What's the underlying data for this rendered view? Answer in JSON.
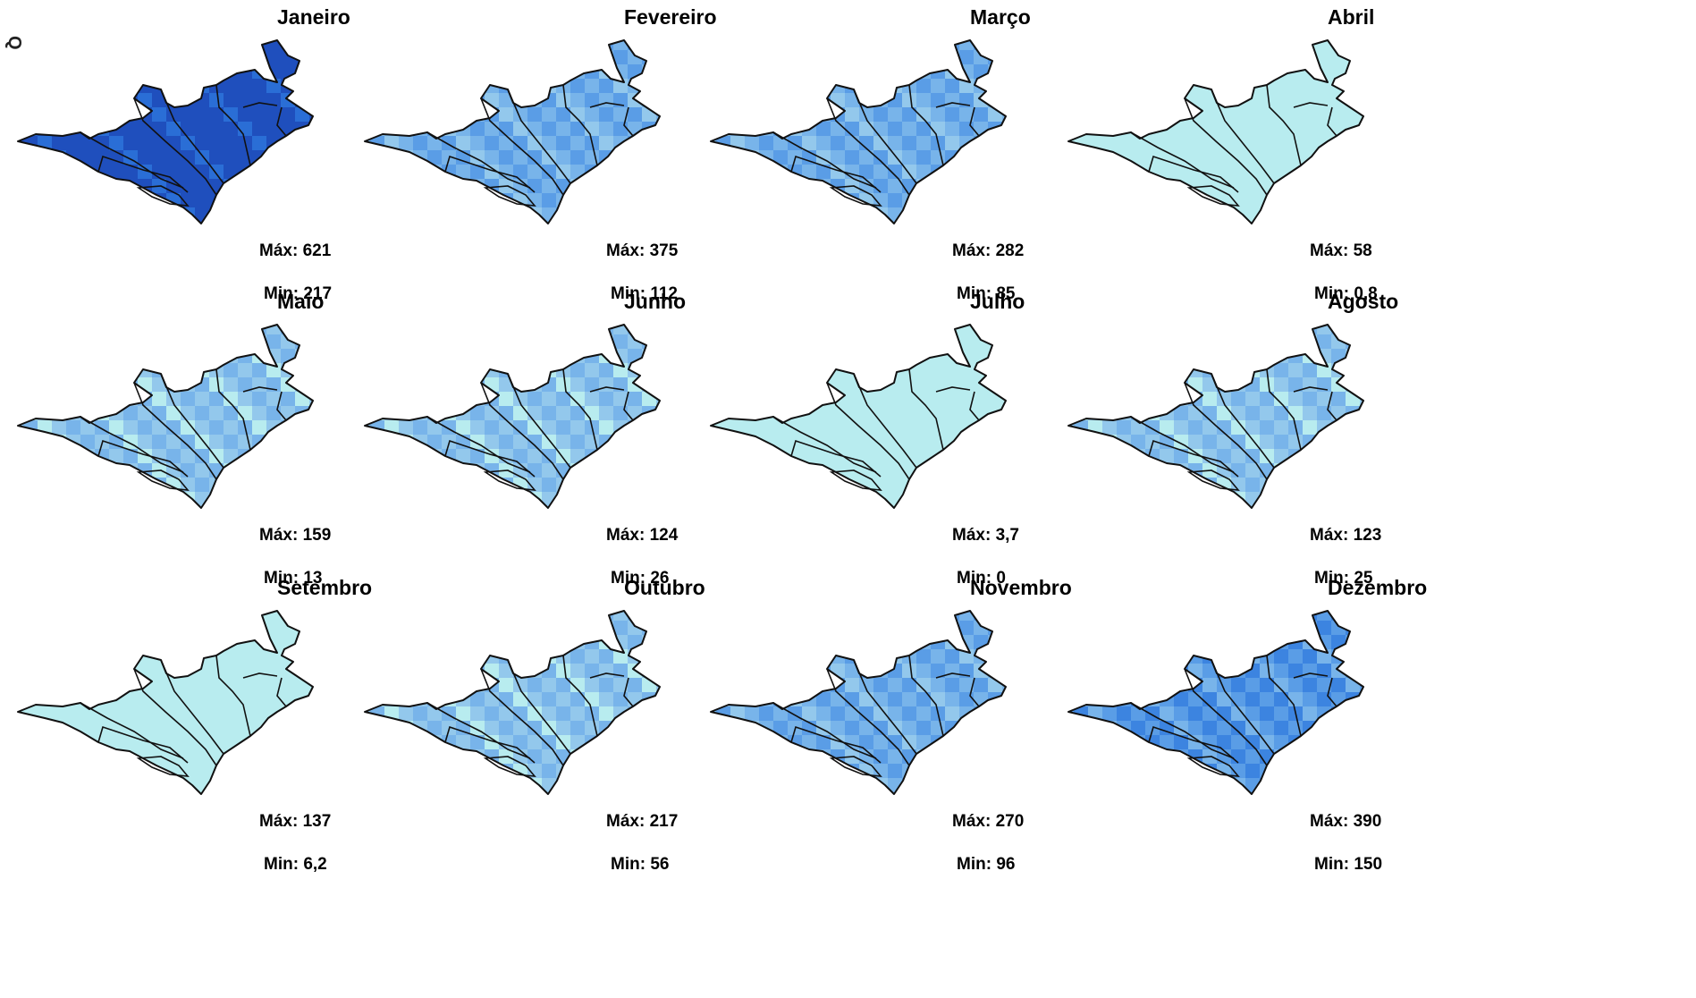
{
  "side_label": "Q",
  "colors": {
    "outline": "#111111",
    "outer_fill_light": "#b8ecef",
    "scale": [
      "#b8ecef",
      "#93c8ec",
      "#78b4ea",
      "#5a9de6",
      "#3c84e0",
      "#2a6ed6",
      "#1f4fbd"
    ]
  },
  "months": [
    {
      "name": "Janeiro",
      "max": "Máx: 621",
      "min": "Min: 217",
      "level": 6
    },
    {
      "name": "Fevereiro",
      "max": "Máx: 375",
      "min": "Min: 112",
      "level": 2
    },
    {
      "name": "Março",
      "max": "Máx: 282",
      "min": "Min: 85",
      "level": 2
    },
    {
      "name": "Abril",
      "max": "Máx: 58",
      "min": "Min: 0,8",
      "level": 0
    },
    {
      "name": "Maio",
      "max": "Máx: 159",
      "min": "Min: 13",
      "level": 1
    },
    {
      "name": "Junho",
      "max": "Máx: 124",
      "min": "Min: 26",
      "level": 1
    },
    {
      "name": "Julho",
      "max": "Máx: 3,7",
      "min": "Min: 0",
      "level": 0
    },
    {
      "name": "Agosto",
      "max": "Máx: 123",
      "min": "Min: 25",
      "level": 1
    },
    {
      "name": "Setembro",
      "max": "Máx: 137",
      "min": "Min: 6,2",
      "level": 0
    },
    {
      "name": "Outubro",
      "max": "Máx: 217",
      "min": "Min: 56",
      "level": 1
    },
    {
      "name": "Novembro",
      "max": "Máx: 270",
      "min": "Min: 96",
      "level": 2
    },
    {
      "name": "Dezembro",
      "max": "Máx: 390",
      "min": "Min: 150",
      "level": 3
    }
  ]
}
